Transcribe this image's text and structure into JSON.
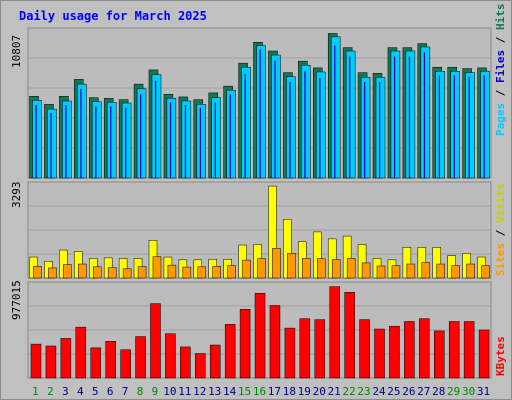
{
  "title": "Daily usage for March 2025",
  "colors": {
    "background": "#c0c0c0",
    "panel": "#bcbcbc",
    "grid": "#a0a0a0",
    "hits": "#117755",
    "files": "#00ccff",
    "pages": "#0000cc",
    "visits": "#ffff00",
    "sites": "#ff9900",
    "kbytes": "#ff0000",
    "day_weekday": "#000088",
    "day_weekend": "#008800"
  },
  "chart_data": [
    {
      "type": "bar",
      "panel": "hits-files-pages",
      "ymax_label": "10807",
      "ylim": [
        0,
        10807
      ],
      "side_label": {
        "pages": "Pages",
        "files": "Files",
        "hits": "Hits",
        "sep": " / "
      },
      "categories": [
        "1",
        "2",
        "3",
        "4",
        "5",
        "6",
        "7",
        "8",
        "9",
        "10",
        "11",
        "12",
        "13",
        "14",
        "15",
        "16",
        "17",
        "18",
        "19",
        "20",
        "21",
        "22",
        "23",
        "24",
        "25",
        "26",
        "27",
        "28",
        "29",
        "30",
        "31"
      ],
      "series": [
        {
          "name": "Hits",
          "values": [
            6050,
            5450,
            6050,
            7300,
            5950,
            5900,
            5800,
            6950,
            8000,
            6200,
            6000,
            5800,
            6300,
            6800,
            8500,
            10050,
            9400,
            7800,
            8650,
            8150,
            10700,
            9650,
            7800,
            7750,
            9650,
            9650,
            9950,
            8200,
            8200,
            8100,
            8150
          ]
        },
        {
          "name": "Files",
          "values": [
            5750,
            5100,
            5700,
            6950,
            5650,
            5600,
            5550,
            6600,
            7650,
            5900,
            5700,
            5450,
            5950,
            6500,
            8200,
            9800,
            9100,
            7500,
            8350,
            7850,
            10450,
            9400,
            7450,
            7450,
            9400,
            9400,
            9700,
            7900,
            7900,
            7800,
            7900
          ]
        },
        {
          "name": "Pages",
          "values": [
            5400,
            4800,
            5400,
            6600,
            5300,
            5300,
            5200,
            6200,
            7200,
            5600,
            5400,
            5200,
            5600,
            6200,
            7700,
            9500,
            8700,
            7100,
            7900,
            7400,
            9800,
            9000,
            7100,
            7100,
            9000,
            9000,
            9300,
            7600,
            7600,
            7500,
            7600
          ]
        }
      ]
    },
    {
      "type": "bar",
      "panel": "visits-sites",
      "ymax_label": "3293",
      "ylim": [
        0,
        3293
      ],
      "side_label": {
        "sites": "Sites",
        "visits": "Visits",
        "sep": " / "
      },
      "categories": [
        "1",
        "2",
        "3",
        "4",
        "5",
        "6",
        "7",
        "8",
        "9",
        "10",
        "11",
        "12",
        "13",
        "14",
        "15",
        "16",
        "17",
        "18",
        "19",
        "20",
        "21",
        "22",
        "23",
        "24",
        "25",
        "26",
        "27",
        "28",
        "29",
        "30",
        "31"
      ],
      "series": [
        {
          "name": "Visits",
          "values": [
            750,
            600,
            1000,
            950,
            700,
            720,
            700,
            700,
            1350,
            750,
            650,
            650,
            670,
            670,
            1180,
            1200,
            3290,
            2100,
            1300,
            1650,
            1400,
            1500,
            1200,
            700,
            650,
            1100,
            1100,
            1100,
            800,
            880,
            750
          ]
        },
        {
          "name": "Sites",
          "values": [
            420,
            360,
            480,
            500,
            400,
            370,
            330,
            410,
            760,
            460,
            390,
            400,
            420,
            440,
            640,
            690,
            1060,
            880,
            700,
            690,
            660,
            700,
            540,
            430,
            440,
            500,
            550,
            500,
            440,
            500,
            440
          ]
        }
      ]
    },
    {
      "type": "bar",
      "panel": "kbytes",
      "ymax_label": "977015",
      "ylim": [
        0,
        977015
      ],
      "side_label": {
        "kbytes": "KBytes"
      },
      "categories": [
        "1",
        "2",
        "3",
        "4",
        "5",
        "6",
        "7",
        "8",
        "9",
        "10",
        "11",
        "12",
        "13",
        "14",
        "15",
        "16",
        "17",
        "18",
        "19",
        "20",
        "21",
        "22",
        "23",
        "24",
        "25",
        "26",
        "27",
        "28",
        "29",
        "30",
        "31"
      ],
      "series": [
        {
          "name": "KBytes",
          "values": [
            360000,
            340000,
            420000,
            540000,
            320000,
            390000,
            300000,
            440000,
            790000,
            470000,
            330000,
            260000,
            350000,
            570000,
            730000,
            900000,
            770000,
            530000,
            630000,
            620000,
            970000,
            910000,
            620000,
            520000,
            550000,
            600000,
            630000,
            500000,
            600000,
            600000,
            510000
          ]
        }
      ]
    }
  ],
  "day_labels": [
    "1",
    "2",
    "3",
    "4",
    "5",
    "6",
    "7",
    "8",
    "9",
    "10",
    "11",
    "12",
    "13",
    "14",
    "15",
    "16",
    "17",
    "18",
    "19",
    "20",
    "21",
    "22",
    "23",
    "24",
    "25",
    "26",
    "27",
    "28",
    "29",
    "30",
    "31"
  ],
  "weekend_days": [
    "1",
    "2",
    "8",
    "9",
    "15",
    "16",
    "22",
    "23",
    "29",
    "30"
  ]
}
